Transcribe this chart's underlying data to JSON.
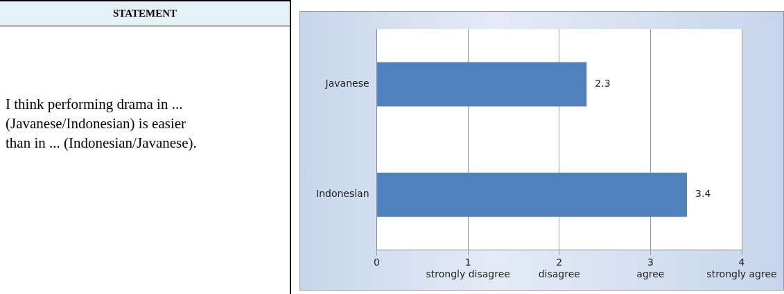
{
  "chart_data": {
    "type": "bar",
    "orientation": "horizontal",
    "categories": [
      "Javanese",
      "Indonesian"
    ],
    "values": [
      2.3,
      3.4
    ],
    "color": "#4f81bd",
    "xlim": [
      0,
      4
    ],
    "xticks": [
      0,
      {
        "value": 1,
        "label": "1\nstrongly disagree"
      },
      {
        "value": 2,
        "label": "2\ndisagree"
      },
      {
        "value": 3,
        "label": "3\nagree"
      },
      {
        "value": 4,
        "label": "4\nstrongly agree"
      }
    ],
    "grid": "x",
    "data_labels": true,
    "legend": false,
    "annotations": [
      "STATEMENT",
      "I think performing drama in ... (Javanese/Indonesian) is easier than in ... (Indonesian/Javanese)."
    ]
  }
}
